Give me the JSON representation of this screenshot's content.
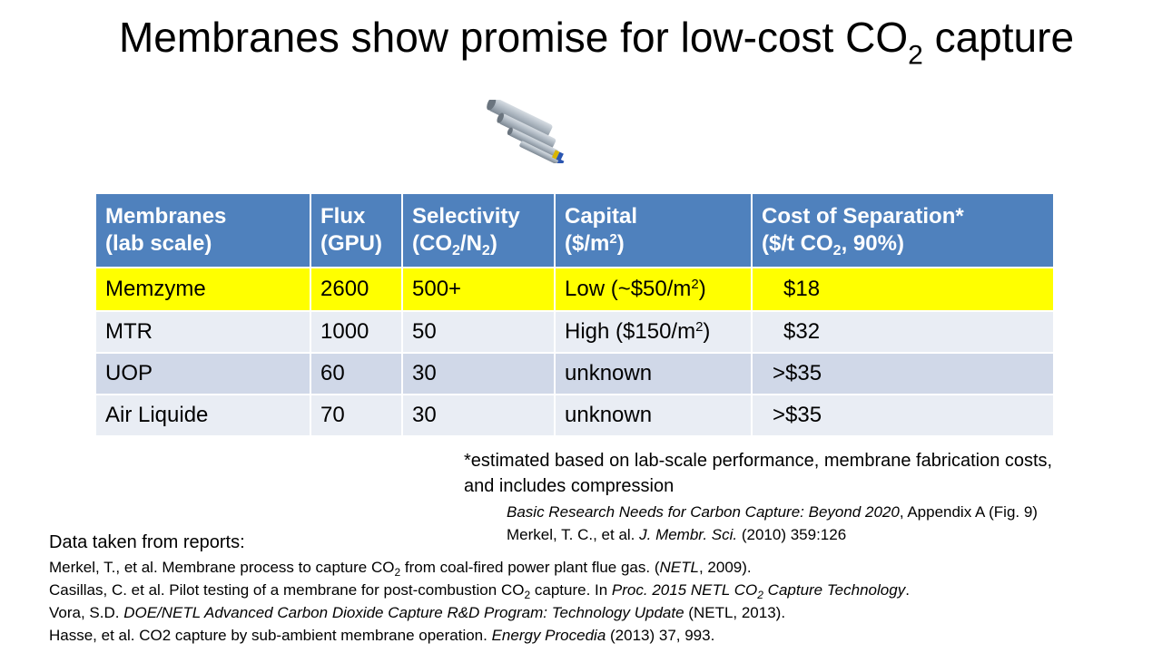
{
  "title": {
    "main": "Membranes show promise for low-cost CO",
    "sub": "2",
    "tail": " capture"
  },
  "table": {
    "headers": [
      {
        "line1": "Membranes",
        "line2": "(lab scale)"
      },
      {
        "line1": "Flux",
        "line2": "(GPU)"
      },
      {
        "line1": "Selectivity",
        "line2_a": "(CO",
        "sub1": "2",
        "line2_b": "/N",
        "sub2": "2",
        "line2_c": ")"
      },
      {
        "line1": "Capital",
        "line2_a": "($/m",
        "sup": "2",
        "line2_b": ")"
      },
      {
        "line1": "Cost of Separation*",
        "line2_a": "($/t CO",
        "sub": "2",
        "line2_b": ", 90%)"
      }
    ],
    "rows": [
      {
        "name": "Memzyme",
        "flux": "2600",
        "selectivity": "500+",
        "capital_a": "Low (~$50/m",
        "capital_sup": "2",
        "capital_b": ")",
        "cost": "$18"
      },
      {
        "name": "MTR",
        "flux": "1000",
        "selectivity": "50",
        "capital_a": "High ($150/m",
        "capital_sup": "2",
        "capital_b": ")",
        "cost": "$32"
      },
      {
        "name": "UOP",
        "flux": "60",
        "selectivity": "30",
        "capital": "unknown",
        "cost": ">$35"
      },
      {
        "name": "Air Liquide",
        "flux": "70",
        "selectivity": "30",
        "capital": "unknown",
        "cost": ">$35"
      }
    ],
    "colors": {
      "header": "#4f81bd",
      "highlight": "#ffff00",
      "row_light": "#e9edf4",
      "row_dark": "#d0d8e8"
    }
  },
  "footnote": {
    "line1": "*estimated based on lab-scale performance, membrane fabrication costs,",
    "line2": "and includes compression",
    "refs": [
      {
        "italic": "Basic Research Needs for Carbon Capture: Beyond 2020",
        "rest": ", Appendix A (Fig. 9)"
      },
      {
        "pre": "Merkel, T. C., et al. ",
        "italic": "J. Membr. Sci.",
        "rest": " (2010) 359:126"
      }
    ]
  },
  "reports": {
    "heading": "Data taken from reports:",
    "r1": {
      "a": "Merkel, T., et al.  Membrane process to capture CO",
      "sub": "2",
      "b": " from coal-fired power plant flue gas. (",
      "italic": "NETL",
      "c": ", 2009)."
    },
    "r2": {
      "a": "Casillas, C. et al. Pilot testing of a membrane for post-combustion CO",
      "sub": "2",
      "b": " capture. In ",
      "italic_a": "Proc. 2015 NETL CO",
      "italic_sub": "2",
      "italic_b": " Capture Technology",
      "c": "."
    },
    "r3": {
      "a": "Vora, S.D.  ",
      "italic": "DOE/NETL Advanced Carbon Dioxide Capture R&D Program: Technology Update",
      "c": " (NETL, 2013)."
    },
    "r4": {
      "a": "Hasse, et al. CO2 capture by sub-ambient membrane operation. ",
      "italic": "Energy Procedia",
      "c": " (2013) 37, 993."
    }
  },
  "images": {
    "module": "membrane-modules-illustration"
  }
}
